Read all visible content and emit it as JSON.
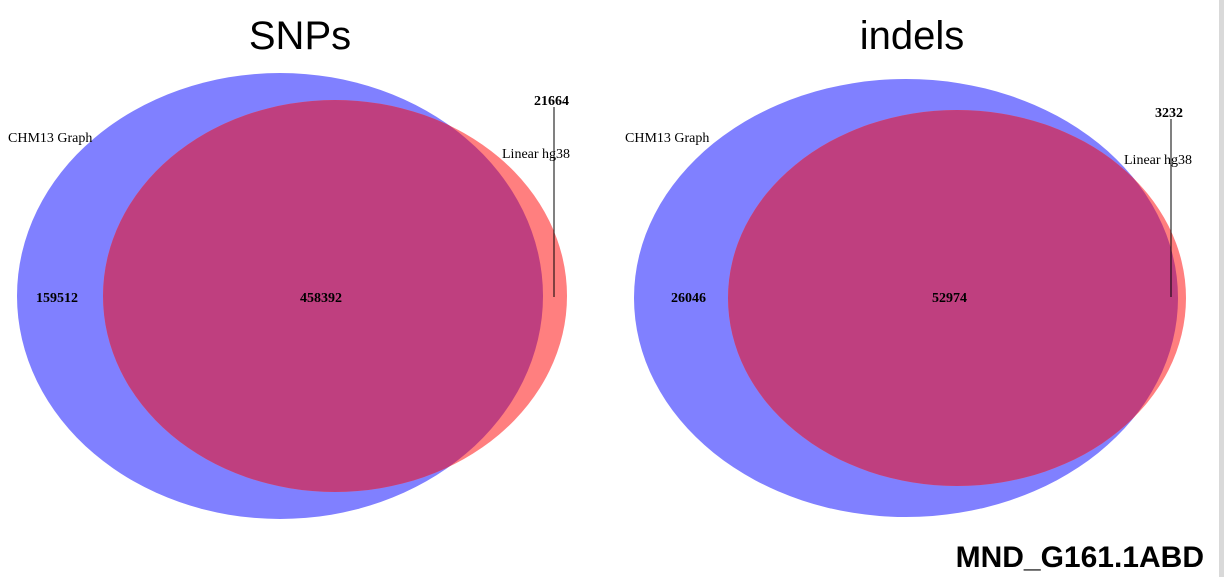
{
  "colors": {
    "set_a": "#8080ff",
    "set_b": "#ff7f7f",
    "overlap": "#bf3f7f",
    "leader_line": "#000000"
  },
  "venns": [
    {
      "title": "SNPs",
      "set_a_label": "CHM13 Graph",
      "set_b_label": "Linear hg38",
      "only_a": "159512",
      "overlap": "458392",
      "only_b": "21664"
    },
    {
      "title": "indels",
      "set_a_label": "CHM13 Graph",
      "set_b_label": "Linear hg38",
      "only_a": "26046",
      "overlap": "52974",
      "only_b": "3232"
    }
  ],
  "footer": {
    "sample_id": "MND_G161.1ABD"
  }
}
